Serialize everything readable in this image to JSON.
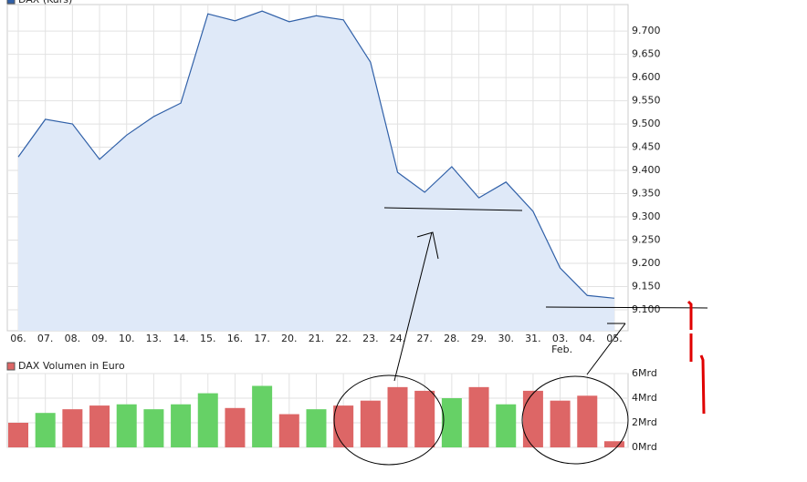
{
  "chart_data": [
    {
      "type": "area",
      "categories": [
        "06.",
        "07.",
        "08.",
        "09.",
        "10.",
        "13.",
        "14.",
        "15.",
        "16.",
        "17.",
        "20.",
        "21.",
        "22.",
        "23.",
        "24.",
        "27.",
        "28.",
        "29.",
        "30.",
        "31.",
        "03.",
        "04.",
        "05."
      ],
      "annotation": "Feb.",
      "series": [
        {
          "name": "DAX (Kurs)",
          "color": "#3060a8",
          "fill": "#dfe9f8",
          "values": [
            9.429,
            9.51,
            9.5,
            9.424,
            9.476,
            9.516,
            9.545,
            9.737,
            9.722,
            9.743,
            9.72,
            9.733,
            9.724,
            9.633,
            9.396,
            9.353,
            9.408,
            9.341,
            9.375,
            9.312,
            9.19,
            9.131,
            9.125
          ]
        }
      ],
      "ylim": [
        9.055,
        9.757
      ],
      "yticks": [
        {
          "value": 9.1,
          "label": "9.100"
        },
        {
          "value": 9.15,
          "label": "9.150"
        },
        {
          "value": 9.2,
          "label": "9.200"
        },
        {
          "value": 9.25,
          "label": "9.250"
        },
        {
          "value": 9.3,
          "label": "9.300"
        },
        {
          "value": 9.35,
          "label": "9.350"
        },
        {
          "value": 9.4,
          "label": "9.400"
        },
        {
          "value": 9.45,
          "label": "9.450"
        },
        {
          "value": 9.5,
          "label": "9.500"
        },
        {
          "value": 9.55,
          "label": "9.550"
        },
        {
          "value": 9.6,
          "label": "9.600"
        },
        {
          "value": 9.65,
          "label": "9.650"
        },
        {
          "value": 9.7,
          "label": "9.700"
        }
      ],
      "grid": true
    },
    {
      "type": "bar",
      "series": [
        {
          "name": "DAX Volumen in Euro",
          "color": "#dd6666",
          "values": [
            2.0,
            2.8,
            3.1,
            3.4,
            3.5,
            3.1,
            3.5,
            4.4,
            3.2,
            5.0,
            2.7,
            3.1,
            3.4,
            3.8,
            4.9,
            4.6,
            4.0,
            4.9,
            3.5,
            4.6,
            3.8,
            4.2,
            0.5
          ],
          "colors": [
            "#dd6666",
            "#66d166",
            "#dd6666",
            "#dd6666",
            "#66d166",
            "#66d166",
            "#66d166",
            "#66d166",
            "#dd6666",
            "#66d166",
            "#dd6666",
            "#66d166",
            "#dd6666",
            "#dd6666",
            "#dd6666",
            "#dd6666",
            "#66d166",
            "#dd6666",
            "#66d166",
            "#dd6666",
            "#dd6666",
            "#dd6666",
            "#dd6666"
          ]
        }
      ],
      "ylim": [
        0,
        6
      ],
      "yticks": [
        {
          "value": 0,
          "label": "0Mrd"
        },
        {
          "value": 2,
          "label": "2Mrd"
        },
        {
          "value": 4,
          "label": "4Mrd"
        },
        {
          "value": 6,
          "label": "6Mrd"
        }
      ],
      "grid": true
    }
  ]
}
